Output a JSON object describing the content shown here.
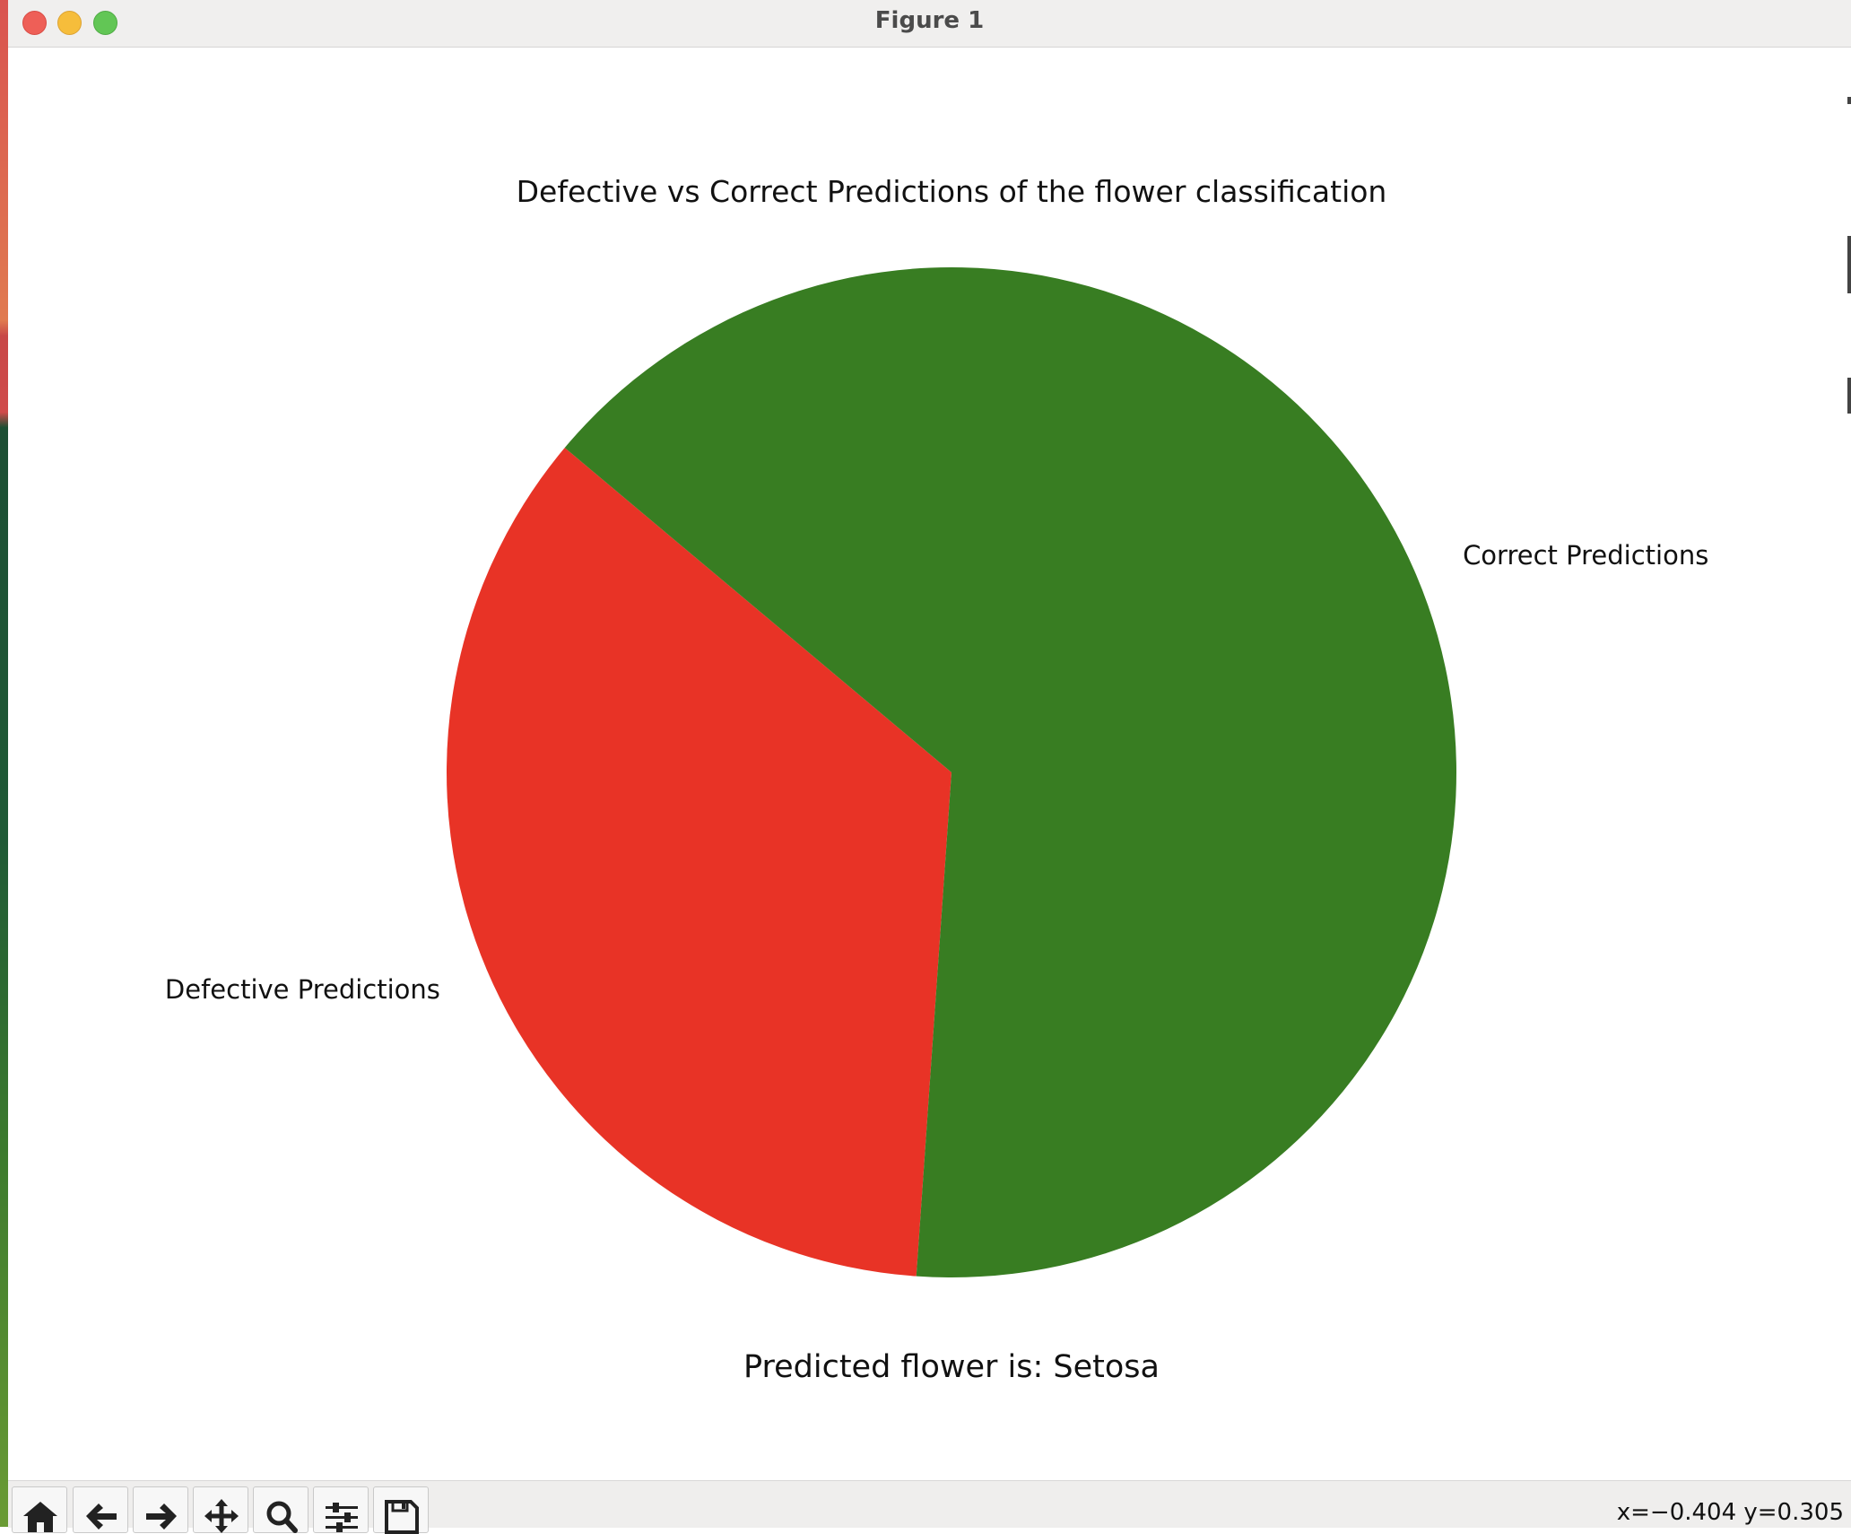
{
  "window": {
    "title": "Figure 1"
  },
  "colors": {
    "correct": "#387d22",
    "defective": "#e83326"
  },
  "chart_data": {
    "type": "pie",
    "title": "Defective vs Correct Predictions of the flower classification",
    "labels": [
      "Defective Predictions",
      "Correct Predictions"
    ],
    "values": [
      35,
      65
    ],
    "colors": [
      "#e83326",
      "#387d22"
    ],
    "startangle_deg": 140,
    "direction": "counterclockwise",
    "xlabel": "Predicted flower is: Setosa"
  },
  "toolbar": {
    "buttons": [
      {
        "name": "home",
        "icon": "home-icon"
      },
      {
        "name": "back",
        "icon": "arrow-left-icon"
      },
      {
        "name": "forward",
        "icon": "arrow-right-icon"
      },
      {
        "name": "pan",
        "icon": "move-icon"
      },
      {
        "name": "zoom",
        "icon": "magnifier-icon"
      },
      {
        "name": "configure-subplots",
        "icon": "sliders-icon"
      },
      {
        "name": "save",
        "icon": "floppy-disk-icon"
      }
    ],
    "coordinates": "x=−0.404 y=0.305"
  }
}
